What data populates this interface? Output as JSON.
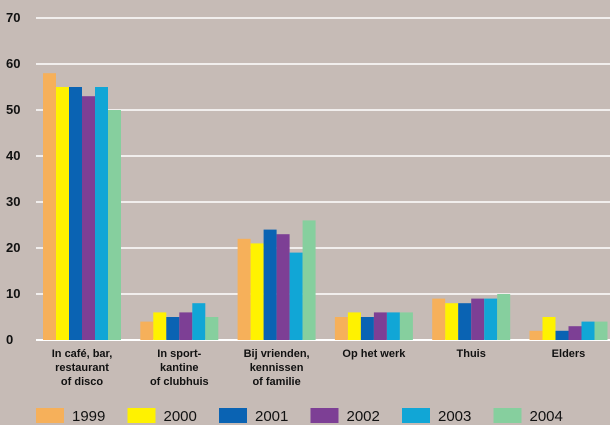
{
  "chart_data": {
    "type": "bar",
    "title": "",
    "xlabel": "",
    "ylabel": "",
    "ylim": [
      0,
      70
    ],
    "yticks": [
      0,
      10,
      20,
      30,
      40,
      50,
      60,
      70
    ],
    "grid": true,
    "legend_position": "bottom",
    "categories": [
      [
        "In café, bar,",
        "restaurant",
        "of disco"
      ],
      [
        "In sport-",
        "kantine",
        "of clubhuis"
      ],
      [
        "Bij vrienden,",
        "kennissen",
        "of familie"
      ],
      [
        "Op het werk"
      ],
      [
        "Thuis"
      ],
      [
        "Elders"
      ]
    ],
    "series": [
      {
        "name": "1999",
        "color": "#f6b05a",
        "values": [
          58,
          4,
          22,
          5,
          9,
          2
        ]
      },
      {
        "name": "2000",
        "color": "#fff200",
        "values": [
          55,
          6,
          21,
          6,
          8,
          5
        ]
      },
      {
        "name": "2001",
        "color": "#0a63b3",
        "values": [
          55,
          5,
          24,
          5,
          8,
          2
        ]
      },
      {
        "name": "2002",
        "color": "#7d3f95",
        "values": [
          53,
          6,
          23,
          6,
          9,
          3
        ]
      },
      {
        "name": "2003",
        "color": "#11a6d6",
        "values": [
          55,
          8,
          19,
          6,
          9,
          4
        ]
      },
      {
        "name": "2004",
        "color": "#86cf9e",
        "values": [
          50,
          5,
          26,
          6,
          10,
          4
        ]
      }
    ]
  }
}
